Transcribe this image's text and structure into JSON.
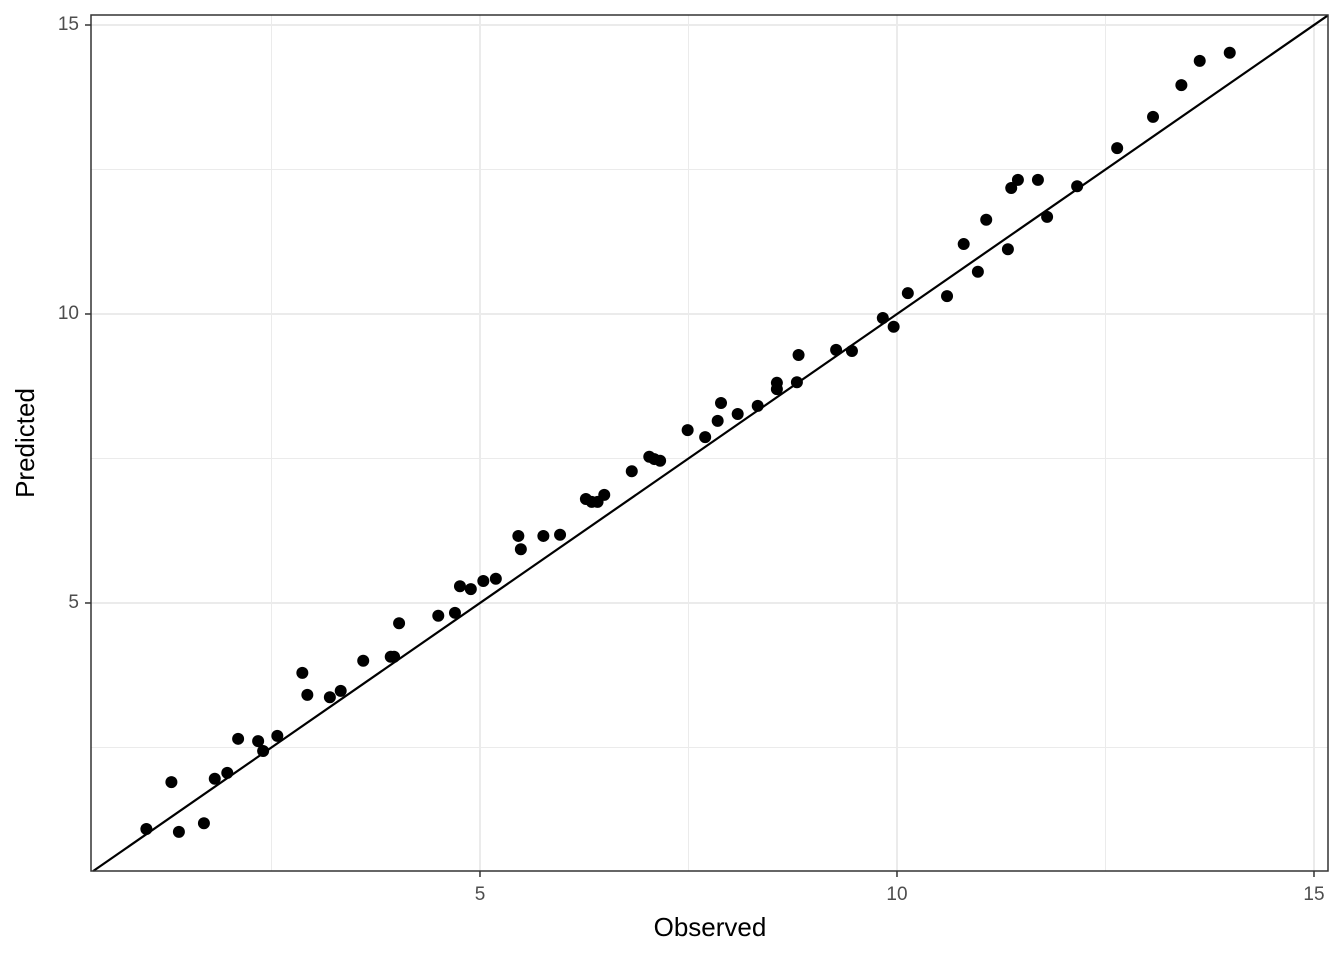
{
  "chart_data": {
    "type": "scatter",
    "x_label": "Observed",
    "y_label": "Predicted",
    "xlim": [
      0.336,
      15.168
    ],
    "ylim": [
      0.363,
      15.173
    ],
    "xticks": [
      5,
      10,
      15
    ],
    "yticks": [
      5,
      10,
      15
    ],
    "xminor": [
      2.5,
      7.5,
      12.5
    ],
    "yminor": [
      2.5,
      7.5,
      12.5
    ],
    "grid": true,
    "identity_line": true,
    "color": "#000000",
    "x": [
      1.0,
      1.3,
      1.39,
      1.69,
      1.82,
      1.97,
      2.1,
      2.34,
      2.4,
      2.57,
      2.87,
      2.93,
      3.2,
      3.33,
      3.6,
      3.93,
      3.97,
      4.03,
      4.5,
      4.7,
      4.76,
      4.89,
      5.04,
      5.19,
      5.46,
      5.49,
      5.76,
      5.96,
      6.27,
      6.34,
      6.41,
      6.49,
      6.82,
      7.03,
      7.09,
      7.16,
      7.49,
      7.7,
      7.85,
      7.89,
      8.09,
      8.33,
      8.56,
      8.56,
      8.8,
      8.82,
      9.27,
      9.46,
      9.83,
      9.96,
      10.13,
      10.6,
      10.8,
      10.97,
      11.07,
      11.33,
      11.37,
      11.45,
      11.69,
      11.8,
      12.16,
      12.64,
      13.07,
      13.41,
      13.63,
      13.99
    ],
    "values": [
      1.09,
      1.9,
      1.04,
      1.19,
      1.96,
      2.06,
      2.65,
      2.61,
      2.44,
      2.7,
      3.79,
      3.41,
      3.37,
      3.48,
      4.0,
      4.07,
      4.07,
      4.65,
      4.78,
      4.83,
      5.29,
      5.24,
      5.38,
      5.42,
      6.16,
      5.93,
      6.16,
      6.18,
      6.8,
      6.75,
      6.75,
      6.87,
      7.28,
      7.53,
      7.49,
      7.46,
      7.99,
      7.87,
      8.15,
      8.46,
      8.27,
      8.41,
      8.81,
      8.7,
      8.82,
      9.29,
      9.38,
      9.36,
      9.93,
      9.78,
      10.36,
      10.31,
      11.21,
      10.73,
      11.63,
      11.12,
      12.18,
      12.32,
      12.32,
      11.68,
      12.21,
      12.87,
      13.41,
      13.96,
      14.38,
      14.52
    ]
  }
}
